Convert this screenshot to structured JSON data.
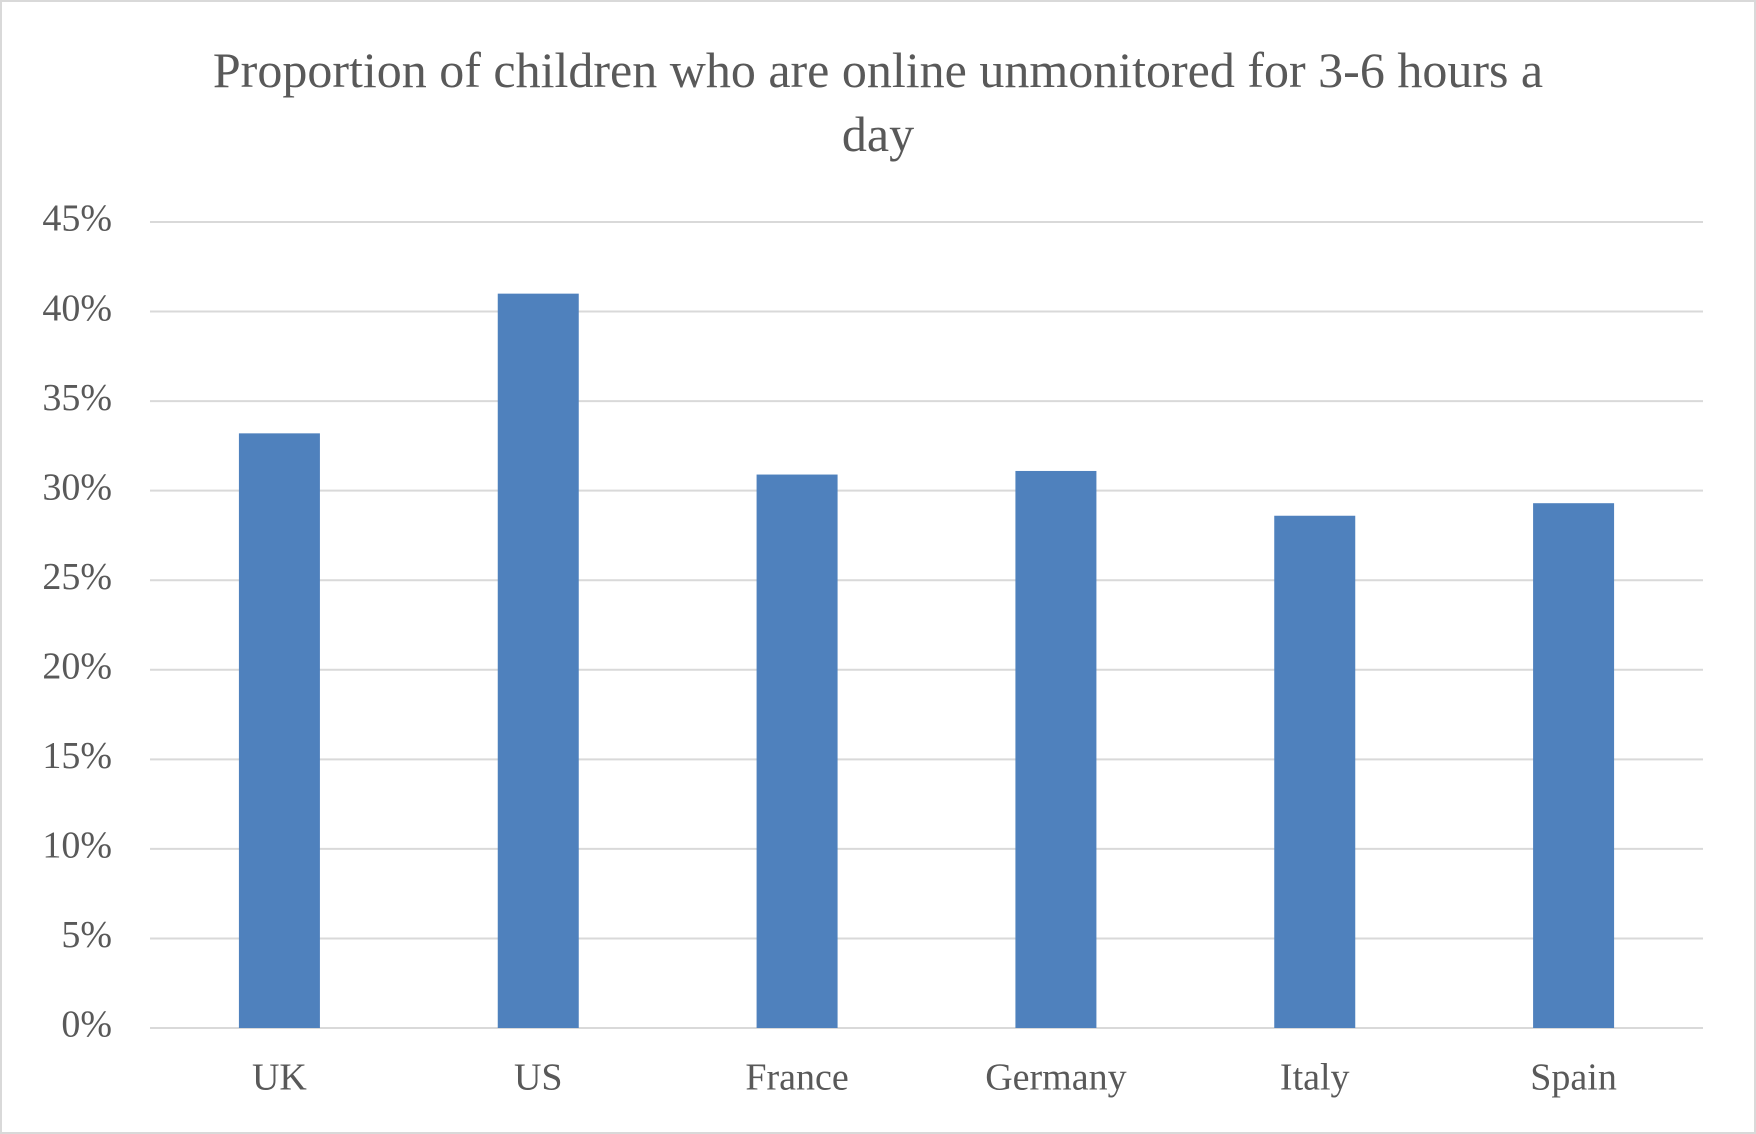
{
  "chart_data": {
    "type": "bar",
    "title": "Proportion of children who are online unmonitored for 3-6 hours a day",
    "categories": [
      "UK",
      "US",
      "France",
      "Germany",
      "Italy",
      "Spain"
    ],
    "values": [
      33.2,
      41.0,
      30.9,
      31.1,
      28.6,
      29.3
    ],
    "color": "#4f81bd",
    "ylim": [
      0,
      45
    ],
    "yticks": [
      {
        "value": 0,
        "label": "0%"
      },
      {
        "value": 5,
        "label": "5%"
      },
      {
        "value": 10,
        "label": "10%"
      },
      {
        "value": 15,
        "label": "15%"
      },
      {
        "value": 20,
        "label": "20%"
      },
      {
        "value": 25,
        "label": "25%"
      },
      {
        "value": 30,
        "label": "30%"
      },
      {
        "value": 35,
        "label": "35%"
      },
      {
        "value": 40,
        "label": "40%"
      },
      {
        "value": 45,
        "label": "45%"
      }
    ],
    "grid": true
  }
}
